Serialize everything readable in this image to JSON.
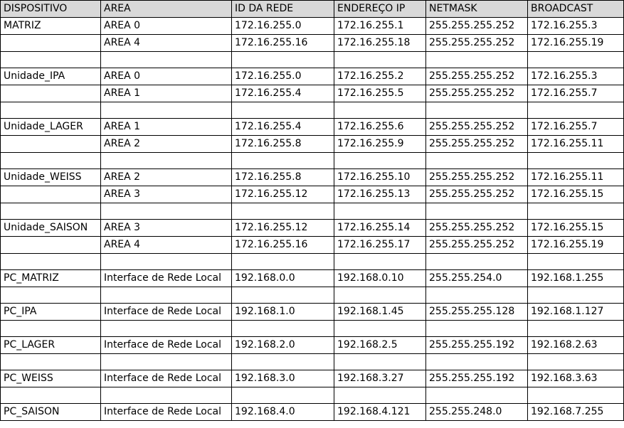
{
  "header": [
    "DISPOSITIVO",
    "AREA",
    "ID DA REDE",
    "ENDEREÇO IP",
    "NETMASK",
    "BROADCAST"
  ],
  "rows": [
    [
      "MATRIZ",
      "AREA 0",
      "172.16.255.0",
      "172.16.255.1",
      "255.255.255.252",
      "172.16.255.3"
    ],
    [
      "",
      "AREA 4",
      "172.16.255.16",
      "172.16.255.18",
      "255.255.255.252",
      "172.16.255.19"
    ],
    [
      "",
      "",
      "",
      "",
      "",
      ""
    ],
    [
      "Unidade_IPA",
      "AREA 0",
      "172.16.255.0",
      "172.16.255.2",
      "255.255.255.252",
      "172.16.255.3"
    ],
    [
      "",
      "AREA 1",
      "172.16.255.4",
      "172.16.255.5",
      "255.255.255.252",
      "172.16.255.7"
    ],
    [
      "",
      "",
      "",
      "",
      "",
      ""
    ],
    [
      "Unidade_LAGER",
      "AREA 1",
      "172.16.255.4",
      "172.16.255.6",
      "255.255.255.252",
      "172.16.255.7"
    ],
    [
      "",
      "AREA 2",
      "172.16.255.8",
      "172.16.255.9",
      "255.255.255.252",
      "172.16.255.11"
    ],
    [
      "",
      "",
      "",
      "",
      "",
      ""
    ],
    [
      "Unidade_WEISS",
      "AREA 2",
      "172.16.255.8",
      "172.16.255.10",
      "255.255.255.252",
      "172.16.255.11"
    ],
    [
      "",
      "AREA 3",
      "172.16.255.12",
      "172.16.255.13",
      "255.255.255.252",
      "172.16.255.15"
    ],
    [
      "",
      "",
      "",
      "",
      "",
      ""
    ],
    [
      "Unidade_SAISON",
      "AREA 3",
      "172.16.255.12",
      "172.16.255.14",
      "255.255.255.252",
      "172.16.255.15"
    ],
    [
      "",
      "AREA 4",
      "172.16.255.16",
      "172.16.255.17",
      "255.255.255.252",
      "172.16.255.19"
    ],
    [
      "",
      "",
      "",
      "",
      "",
      ""
    ],
    [
      "PC_MATRIZ",
      "Interface de Rede Local",
      "192.168.0.0",
      "192.168.0.10",
      "255.255.254.0",
      "192.168.1.255"
    ],
    [
      "",
      "",
      "",
      "",
      "",
      ""
    ],
    [
      "PC_IPA",
      "Interface de Rede Local",
      "192.168.1.0",
      "192.168.1.45",
      "255.255.255.128",
      "192.168.1.127"
    ],
    [
      "",
      "",
      "",
      "",
      "",
      ""
    ],
    [
      "PC_LAGER",
      "Interface de Rede Local",
      "192.168.2.0",
      "192.168.2.5",
      "255.255.255.192",
      "192.168.2.63"
    ],
    [
      "",
      "",
      "",
      "",
      "",
      ""
    ],
    [
      "PC_WEISS",
      "Interface de Rede Local",
      "192.168.3.0",
      "192.168.3.27",
      "255.255.255.192",
      "192.168.3.63"
    ],
    [
      "",
      "",
      "",
      "",
      "",
      ""
    ],
    [
      "PC_SAISON",
      "Interface de Rede Local",
      "192.168.4.0",
      "192.168.4.121",
      "255.255.248.0",
      "192.168.7.255"
    ]
  ]
}
